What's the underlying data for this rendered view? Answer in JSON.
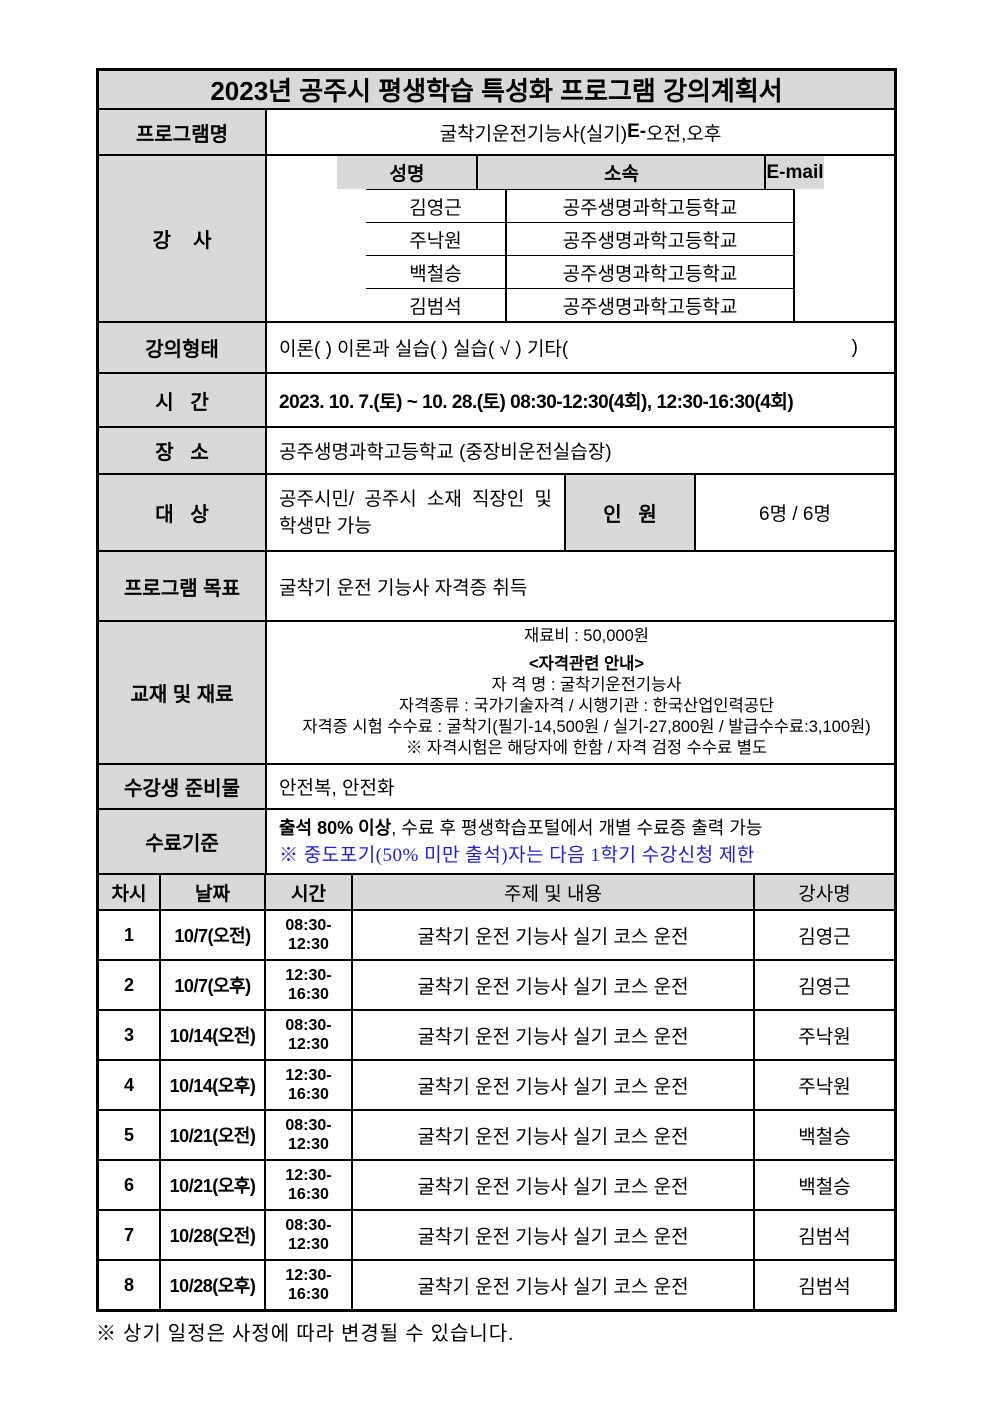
{
  "doc": {
    "title": "2023년 공주시 평생학습 특성화 프로그램 강의계획서",
    "program": {
      "label": "프로그램명",
      "name_pre": "굴착기운전기능사(실기)",
      "name_bold": "E-",
      "name_post": "오전,오후"
    },
    "instructors": {
      "label": "강    사",
      "columns": {
        "name": "성명",
        "affiliation": "소속",
        "email": "E-mail"
      },
      "rows": [
        {
          "name": "김영근",
          "affiliation": "공주생명과학고등학교",
          "email": ""
        },
        {
          "name": "주낙원",
          "affiliation": "공주생명과학고등학교",
          "email": ""
        },
        {
          "name": "백철승",
          "affiliation": "공주생명과학고등학교",
          "email": ""
        },
        {
          "name": "김범석",
          "affiliation": "공주생명과학고등학교",
          "email": ""
        }
      ]
    },
    "lecture_type": {
      "label": "강의형태",
      "value": "이론( )   이론과 실습( )    실습( √ )    기타(",
      "close": ")"
    },
    "time": {
      "label": "시   간",
      "value": "2023. 10. 7.(토) ~ 10. 28.(토) 08:30-12:30(4회), 12:30-16:30(4회)"
    },
    "place": {
      "label": "장   소",
      "value": "공주생명과학고등학교 (중장비운전실습장)"
    },
    "target": {
      "label": "대   상",
      "value": "공주시민/ 공주시 소재 직장인 및 학생만 가능"
    },
    "capacity": {
      "label": "인   원",
      "value": "6명 / 6명"
    },
    "goal": {
      "label": "프로그램 목표",
      "value": "굴착기 운전 기능사 자격증 취득"
    },
    "materials": {
      "label": "교재 및 재료",
      "lines": [
        {
          "text": "재료비 : 50,000원"
        },
        {
          "text": "<자격관련 안내>"
        },
        {
          "text": "자 격 명 : 굴착기운전기능사"
        },
        {
          "text": "자격종류 : 국가기술자격 / 시행기관 : 한국산업인력공단"
        },
        {
          "text": "자격증 시험 수수료 : 굴착기(필기-14,500원 / 실기-27,800원 / 발급수수료:3,100원)"
        },
        {
          "text": "※ 자격시험은 해당자에 한함 / 자격 검정 수수료 별도"
        }
      ]
    },
    "supplies": {
      "label": "수강생 준비물",
      "value": "안전복, 안전화"
    },
    "completion": {
      "label": "수료기준",
      "line1_bold": "출석 80% 이상",
      "line1_rest": ", 수료 후 평생학습포털에서 개별 수료증 출력 가능",
      "line2": "※ 중도포기(50% 미만 출석)자는 다음 1학기 수강신청 제한"
    }
  },
  "schedule": {
    "headers": {
      "no": "차시",
      "date": "날짜",
      "time": "시간",
      "topic": "주제 및 내용",
      "instructor": "강사명"
    },
    "rows": [
      {
        "no": "1",
        "date": "10/7(오전)",
        "time1": "08:30-",
        "time2": "12:30",
        "topic": "굴착기 운전 기능사 실기 코스 운전",
        "instructor": "김영근"
      },
      {
        "no": "2",
        "date": "10/7(오후)",
        "time1": "12:30-",
        "time2": "16:30",
        "topic": "굴착기 운전 기능사 실기 코스 운전",
        "instructor": "김영근"
      },
      {
        "no": "3",
        "date": "10/14(오전)",
        "time1": "08:30-",
        "time2": "12:30",
        "topic": "굴착기 운전 기능사 실기 코스 운전",
        "instructor": "주낙원"
      },
      {
        "no": "4",
        "date": "10/14(오후)",
        "time1": "12:30-",
        "time2": "16:30",
        "topic": "굴착기 운전 기능사 실기 코스 운전",
        "instructor": "주낙원"
      },
      {
        "no": "5",
        "date": "10/21(오전)",
        "time1": "08:30-",
        "time2": "12:30",
        "topic": "굴착기 운전 기능사 실기 코스 운전",
        "instructor": "백철승"
      },
      {
        "no": "6",
        "date": "10/21(오후)",
        "time1": "12:30-",
        "time2": "16:30",
        "topic": "굴착기 운전 기능사 실기 코스 운전",
        "instructor": "백철승"
      },
      {
        "no": "7",
        "date": "10/28(오전)",
        "time1": "08:30-",
        "time2": "12:30",
        "topic": "굴착기 운전 기능사 실기 코스 운전",
        "instructor": "김범석"
      },
      {
        "no": "8",
        "date": "10/28(오후)",
        "time1": "12:30-",
        "time2": "16:30",
        "topic": "굴착기 운전 기능사 실기 코스 운전",
        "instructor": "김범석"
      }
    ]
  },
  "page": {
    "footer_note": "※ 상기 일정은 사정에 따라 변경될 수 있습니다."
  },
  "colors": {
    "header_bg": "#d9d9d9",
    "note_blue": "#2222cc",
    "border": "#000000"
  }
}
